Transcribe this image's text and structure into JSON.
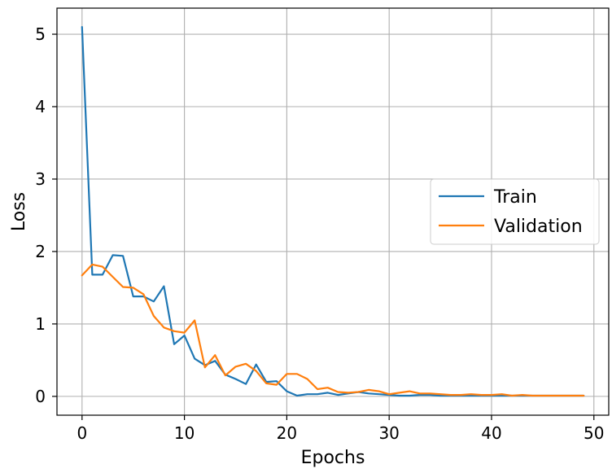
{
  "chart_data": {
    "type": "line",
    "title": "",
    "xlabel": "Epochs",
    "ylabel": "Loss",
    "xlim": [
      -2.45,
      51.45
    ],
    "ylim": [
      -0.26,
      5.36
    ],
    "grid": true,
    "legend_position": "center-right",
    "x_ticks": [
      0,
      10,
      20,
      30,
      40,
      50
    ],
    "x_tick_labels": [
      "0",
      "10",
      "20",
      "30",
      "40",
      "50"
    ],
    "y_ticks": [
      0,
      1,
      2,
      3,
      4,
      5
    ],
    "y_tick_labels": [
      "0",
      "1",
      "2",
      "3",
      "4",
      "5"
    ],
    "x": [
      0,
      1,
      2,
      3,
      4,
      5,
      6,
      7,
      8,
      9,
      10,
      11,
      12,
      13,
      14,
      15,
      16,
      17,
      18,
      19,
      20,
      21,
      22,
      23,
      24,
      25,
      26,
      27,
      28,
      29,
      30,
      31,
      32,
      33,
      34,
      35,
      36,
      37,
      38,
      39,
      40,
      41,
      42,
      43,
      44,
      45,
      46,
      47,
      48,
      49
    ],
    "series": [
      {
        "name": "Train",
        "color": "#1f77b4",
        "values": [
          5.1,
          1.68,
          1.68,
          1.95,
          1.94,
          1.38,
          1.38,
          1.31,
          1.52,
          0.72,
          0.84,
          0.52,
          0.43,
          0.49,
          0.3,
          0.24,
          0.17,
          0.44,
          0.2,
          0.21,
          0.07,
          0.01,
          0.03,
          0.03,
          0.05,
          0.02,
          0.04,
          0.06,
          0.04,
          0.03,
          0.02,
          0.01,
          0.01,
          0.02,
          0.02,
          0.01,
          0.01,
          0.01,
          0.01,
          0.01,
          0.01,
          0.01,
          0.01,
          0.01,
          0.01,
          0.01,
          0.01,
          0.01,
          0.01,
          0.01
        ]
      },
      {
        "name": "Validation",
        "color": "#ff7f0e",
        "values": [
          1.67,
          1.82,
          1.79,
          1.65,
          1.51,
          1.5,
          1.41,
          1.11,
          0.95,
          0.9,
          0.88,
          1.05,
          0.4,
          0.57,
          0.29,
          0.41,
          0.45,
          0.35,
          0.18,
          0.16,
          0.31,
          0.31,
          0.24,
          0.1,
          0.12,
          0.06,
          0.05,
          0.06,
          0.09,
          0.07,
          0.03,
          0.05,
          0.07,
          0.04,
          0.04,
          0.03,
          0.02,
          0.02,
          0.03,
          0.02,
          0.02,
          0.03,
          0.01,
          0.02,
          0.01,
          0.01,
          0.01,
          0.01,
          0.01,
          0.01
        ]
      }
    ]
  }
}
